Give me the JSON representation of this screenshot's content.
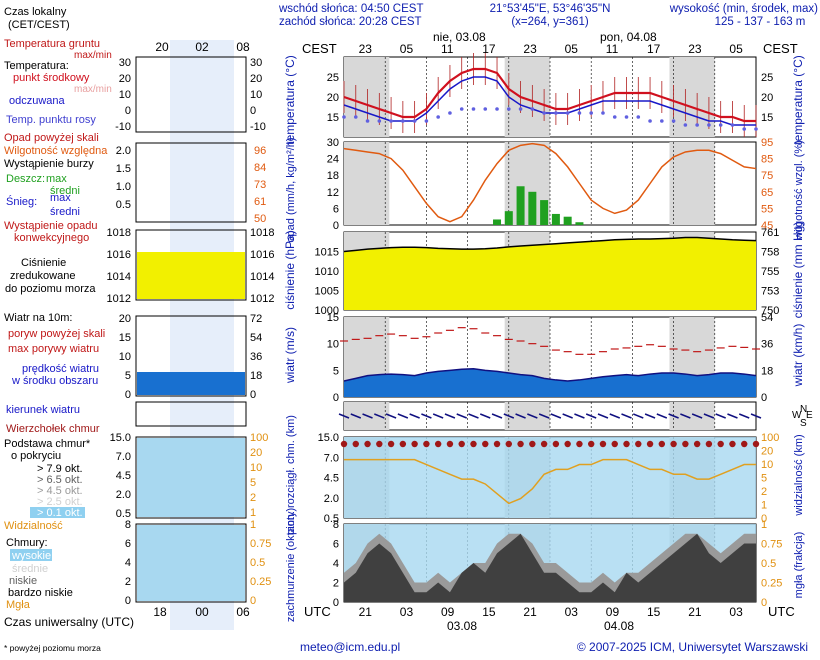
{
  "header": {
    "sunrise": "wschód słońca: 04:50 CEST",
    "sunset": "zachód słońca: 20:28 CEST",
    "coords": "21°53'45\"E, 53°46'35\"N",
    "grid": "(x=264, y=361)",
    "elev_title": "wysokość (min, środek, max)",
    "elev_values": "125 - 137 - 163 m"
  },
  "legend": {
    "time_local": "Czas lokalny",
    "time_local_sub": "(CET/CEST)",
    "ground_temp": "Temperatura gruntu",
    "ground_temp_sub": "max/min",
    "temperature": "Temperatura:",
    "mid_point": "punkt środkowy",
    "max_min": "max/min",
    "felt": "odczuwana",
    "dew_point": "Temp. punktu rosy",
    "precip_above": "Opad powyżej skali",
    "humidity": "Wilgotność względna",
    "storm": "Wystąpienie burzy",
    "rain": "Deszcz:",
    "rain_max": "max",
    "rain_avg": "średni",
    "snow": "Śnieg:",
    "snow_max": "max",
    "snow_avg": "średni",
    "conv": "Wystąpienie opadu",
    "conv2": "konwekcyjnego",
    "pressure": "Ciśnienie",
    "pressure2": "zredukowane",
    "pressure3": "do poziomu morza",
    "wind": "Wiatr na 10m:",
    "gust_above": "poryw powyżej skali",
    "gust_max": "max porywy wiatru",
    "wind_avg": "prędkość wiatru",
    "wind_avg2": "w środku obszaru",
    "wind_dir": "kierunek wiatru",
    "cloud_top": "Wierzchołek chmur",
    "cloud_base": "Podstawa chmur*",
    "cloud_base2": "o pokryciu",
    "cov1": "> 7.9 okt.",
    "cov2": "> 6.5 okt.",
    "cov3": "> 4.5 okt.",
    "cov4": "> 2.5 okt.",
    "cov5": "> 0.1 okt.",
    "visibility": "Widzialność",
    "clouds": "Chmury:",
    "high": "wysokie",
    "mid": "średnie",
    "low": "niskie",
    "very_low": "bardzo niskie",
    "fog": "Mgła",
    "utc": "Czas uniwersalny (UTC)",
    "footnote": "* powyżej poziomu morza"
  },
  "axes": {
    "cest": "CEST",
    "utc": "UTC",
    "day1": "nie, 03.08",
    "day2": "pon, 04.08",
    "date1": "03.08",
    "date2": "04.08",
    "top_hours": [
      "23",
      "05",
      "11",
      "17",
      "23",
      "05",
      "11",
      "17",
      "23",
      "05"
    ],
    "bottom_hours": [
      "21",
      "03",
      "09",
      "15",
      "21",
      "03",
      "09",
      "15",
      "21",
      "03"
    ],
    "legend_top_hours": [
      "20",
      "02",
      "08"
    ],
    "legend_bottom_hours": [
      "18",
      "00",
      "06"
    ],
    "temp_left_label": "temperatura (°C)",
    "temp_right_label": "temperatura (°C)",
    "precip_left_label": "opad (mm/h, kg/m²/h)",
    "precip_right_label": "wilgotność wzgl. (%)",
    "press_left_label": "ciśnienie (hPa)",
    "press_right_label": "ciśnienie (mm Hg)",
    "wind_left_label": "wiatr (m/s)",
    "wind_right_label": "wiatr (km/h)",
    "cloudbase_left_label": "pion. rozciągł. chm. (km)",
    "cloudbase_right_label": "widzialność (km)",
    "cover_left_label": "zachmurzenie (oktanty)",
    "cover_right_label": "mgła (frakcja)"
  },
  "footer": {
    "email": "meteo@icm.edu.pl",
    "copyright": "© 2007-2025 ICM, Uniwersytet Warszawski"
  },
  "colors": {
    "temp": "#d0101e",
    "felt": "#1818c8",
    "dew": "#6060e0",
    "humidity": "#e05a10",
    "precip": "#20a020",
    "pressure_fill": "#f2f000",
    "wind_fill": "#1870d0",
    "gust": "#c01818",
    "night": "#d8d8d8",
    "sky": "#a8d8f0"
  },
  "chart_data": [
    {
      "type": "line",
      "title": "temperatura (°C)",
      "ylim": [
        10,
        30
      ],
      "y_ticks": [
        15,
        20,
        25
      ],
      "x_hours_cest": [
        "23",
        "05",
        "11",
        "17",
        "23",
        "05",
        "11",
        "17",
        "23",
        "05"
      ],
      "series": [
        {
          "name": "temperature",
          "values": [
            20,
            19,
            18,
            17,
            16,
            15,
            15,
            17,
            21,
            24,
            26,
            27,
            27,
            26,
            22,
            20,
            19,
            18,
            17,
            17,
            18,
            19,
            20,
            21,
            21,
            21,
            21,
            20,
            19,
            18,
            17,
            16,
            15,
            15,
            14,
            14
          ]
        },
        {
          "name": "felt temperature",
          "values": [
            18,
            17,
            16,
            15,
            14,
            14,
            14,
            16,
            19,
            22,
            24,
            25,
            25,
            24,
            20,
            18,
            17,
            16,
            16,
            16,
            17,
            18,
            19,
            19,
            19,
            19,
            19,
            18,
            17,
            16,
            15,
            14,
            14,
            13,
            13,
            13
          ]
        },
        {
          "name": "dew point",
          "values": [
            15,
            15,
            14,
            14,
            14,
            14,
            14,
            14,
            15,
            16,
            17,
            17,
            17,
            17,
            17,
            17,
            17,
            16,
            16,
            16,
            16,
            16,
            16,
            15,
            15,
            15,
            14,
            14,
            14,
            13,
            13,
            13,
            13,
            13,
            12,
            12
          ]
        }
      ]
    },
    {
      "type": "bar",
      "title": "opad (mm/h, kg/m²/h)",
      "ylim": [
        0,
        30
      ],
      "y_ticks": [
        0,
        6,
        12,
        18,
        24,
        30
      ],
      "y2_ticks": [
        45,
        55,
        65,
        75,
        85,
        95
      ],
      "series": [
        {
          "name": "precipitation",
          "values": [
            0,
            0,
            0,
            0,
            0,
            0,
            0,
            0,
            0,
            0,
            0,
            0,
            0,
            2,
            5,
            14,
            12,
            9,
            4,
            3,
            1,
            0,
            0,
            0,
            0,
            0,
            0,
            0,
            0,
            0,
            0,
            0,
            0,
            0,
            0,
            0
          ]
        },
        {
          "name": "relative humidity",
          "values": [
            91,
            90,
            89,
            88,
            85,
            78,
            68,
            58,
            50,
            47,
            50,
            60,
            72,
            82,
            90,
            93,
            94,
            93,
            88,
            80,
            70,
            60,
            55,
            52,
            54,
            60,
            70,
            80,
            86,
            89,
            90,
            90,
            88,
            84,
            80,
            79
          ]
        }
      ]
    },
    {
      "type": "area",
      "title": "ciśnienie (hPa)",
      "ylim": [
        1000,
        1020
      ],
      "y_ticks": [
        1000,
        1005,
        1010,
        1015
      ],
      "y2_ticks": [
        750,
        753,
        755,
        758,
        761
      ],
      "values": [
        1015.0,
        1015.3,
        1015.6,
        1015.8,
        1016.0,
        1016.1,
        1016.1,
        1016.0,
        1015.8,
        1015.7,
        1015.6,
        1015.6,
        1015.7,
        1015.9,
        1016.2,
        1016.4,
        1016.6,
        1016.8,
        1017.0,
        1017.2,
        1017.4,
        1017.6,
        1017.8,
        1018.0,
        1018.1,
        1018.2,
        1018.2,
        1018.3,
        1018.4,
        1018.6,
        1018.6,
        1018.4,
        1018.2,
        1018.0,
        1017.9,
        1017.8
      ]
    },
    {
      "type": "area",
      "title": "wiatr (m/s)",
      "ylim": [
        0,
        15
      ],
      "y_ticks": [
        0,
        5,
        10,
        15
      ],
      "y2_ticks": [
        0,
        18,
        36,
        54
      ],
      "series": [
        {
          "name": "wind speed",
          "values": [
            3.0,
            3.5,
            4.0,
            4.2,
            4.3,
            4.2,
            4.0,
            4.5,
            4.8,
            5.0,
            5.2,
            5.3,
            5.0,
            4.8,
            4.5,
            4.2,
            4.0,
            3.5,
            3.2,
            3.0,
            3.2,
            3.5,
            3.8,
            4.0,
            4.2,
            4.0,
            4.3,
            4.5,
            4.5,
            4.3,
            4.0,
            4.2,
            4.5,
            4.5,
            4.3,
            4.0
          ]
        },
        {
          "name": "gusts",
          "values": [
            10.5,
            10.8,
            11.0,
            11.5,
            11.8,
            11.5,
            11.0,
            11.3,
            12.0,
            12.5,
            13.0,
            12.8,
            12.0,
            11.5,
            10.8,
            10.5,
            10.0,
            9.5,
            8.8,
            8.5,
            8.0,
            8.0,
            8.5,
            9.0,
            9.2,
            9.5,
            9.8,
            9.5,
            9.0,
            8.8,
            8.5,
            8.8,
            9.2,
            9.5,
            9.3,
            9.0
          ]
        }
      ]
    },
    {
      "type": "line",
      "title": "widzialność (km)",
      "ylim": [
        0,
        15
      ],
      "y_ticks": [
        0.5,
        2.0,
        4.5,
        7.0,
        15.0
      ],
      "y2_ticks": [
        0,
        1,
        2,
        5,
        10,
        20,
        100
      ],
      "series": [
        {
          "name": "visibility",
          "values": [
            12,
            12,
            12,
            12,
            12,
            12,
            12,
            11,
            10,
            9,
            8,
            8,
            7,
            5,
            3,
            4,
            6,
            9,
            10,
            10,
            11,
            11,
            12,
            12,
            12,
            11,
            10,
            10,
            9,
            9,
            8,
            8,
            9,
            10,
            11,
            11
          ]
        }
      ]
    },
    {
      "type": "area",
      "title": "zachmurzenie (oktanty)",
      "ylim": [
        0,
        8
      ],
      "y_ticks": [
        0,
        2,
        4,
        6,
        8
      ],
      "y2_ticks": [
        0,
        0.25,
        0.5,
        0.75,
        1
      ],
      "series": [
        {
          "name": "low clouds",
          "values": [
            2,
            3,
            5,
            6,
            5,
            3,
            1,
            1,
            2,
            1,
            3,
            4,
            3,
            5,
            6,
            7,
            5,
            3,
            3,
            2,
            1,
            1,
            2,
            1,
            3,
            2,
            3,
            4,
            5,
            6,
            7,
            5,
            4,
            5,
            6,
            6
          ]
        },
        {
          "name": "mid clouds",
          "values": [
            3,
            4,
            6,
            7,
            6,
            4,
            2,
            2,
            3,
            2,
            3,
            4,
            4,
            6,
            7,
            7,
            6,
            4,
            4,
            3,
            2,
            2,
            3,
            2,
            3,
            3,
            4,
            5,
            6,
            7,
            7,
            6,
            5,
            6,
            7,
            7
          ]
        }
      ]
    }
  ]
}
